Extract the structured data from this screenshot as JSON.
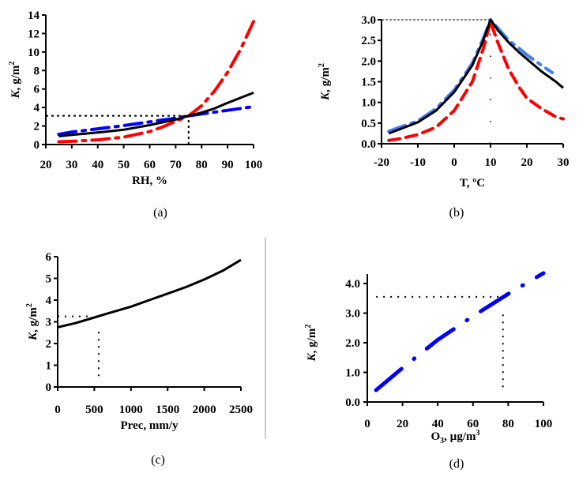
{
  "figure": {
    "divider": true
  },
  "chart_data": [
    {
      "id": "a",
      "type": "line",
      "caption": "(a)",
      "title": "",
      "xlabel": "RH, %",
      "ylabel_italic": "K",
      "ylabel_rest": ", g/m",
      "ylabel_sup": "2",
      "xlim": [
        20,
        100
      ],
      "ylim": [
        0,
        14
      ],
      "xticks": [
        20,
        30,
        40,
        50,
        60,
        70,
        80,
        90,
        100
      ],
      "yticks": [
        0,
        2,
        4,
        6,
        8,
        10,
        12,
        14
      ],
      "ytick_decimals": 0,
      "grid": false,
      "legend": "none",
      "series": [
        {
          "name": "blue dash-dot",
          "color": "#0000ff",
          "style": "dashdot",
          "x": [
            25,
            30,
            40,
            50,
            60,
            70,
            75,
            80,
            90,
            100
          ],
          "y": [
            1.1,
            1.35,
            1.7,
            2.05,
            2.45,
            2.85,
            3.1,
            3.3,
            3.7,
            4.1
          ]
        },
        {
          "name": "red dash-dot",
          "color": "#ff0000",
          "style": "dashdot",
          "x": [
            25,
            30,
            40,
            50,
            60,
            65,
            70,
            75,
            80,
            85,
            90,
            95,
            100
          ],
          "y": [
            0.3,
            0.35,
            0.5,
            0.8,
            1.4,
            1.9,
            2.5,
            3.1,
            4.2,
            5.8,
            7.8,
            10.3,
            13.3
          ]
        },
        {
          "name": "black solid",
          "color": "#000000",
          "style": "solid",
          "x": [
            25,
            30,
            40,
            50,
            60,
            70,
            75,
            80,
            85,
            90,
            100
          ],
          "y": [
            0.9,
            1.05,
            1.3,
            1.6,
            2.1,
            2.7,
            3.1,
            3.45,
            3.9,
            4.5,
            5.6
          ]
        }
      ],
      "reference_lines": [
        {
          "orientation": "horizontal",
          "value": 3.1,
          "from": 20,
          "to": 75
        },
        {
          "orientation": "vertical",
          "value": 75,
          "from": 0,
          "to": 3.1
        }
      ]
    },
    {
      "id": "b",
      "type": "line",
      "caption": "(b)",
      "title": "",
      "xlabel": "T, ºC",
      "ylabel_italic": "K",
      "ylabel_rest": ", g/m",
      "ylabel_sup": "2",
      "xlim": [
        -20,
        30
      ],
      "ylim": [
        0,
        3.0
      ],
      "xticks": [
        -20,
        -10,
        0,
        10,
        20,
        30
      ],
      "yticks": [
        0.0,
        0.5,
        1.0,
        1.5,
        2.0,
        2.5,
        3.0
      ],
      "ytick_decimals": 1,
      "grid": false,
      "legend": "none",
      "series": [
        {
          "name": "light blue dash-dot",
          "color": "#3f7ff5",
          "style": "dashdot",
          "x": [
            -18,
            -15,
            -10,
            -5,
            0,
            5,
            8,
            10,
            12,
            15,
            18,
            20,
            24,
            27
          ],
          "y": [
            0.3,
            0.4,
            0.55,
            0.85,
            1.3,
            1.95,
            2.55,
            3.0,
            2.8,
            2.5,
            2.3,
            2.15,
            1.9,
            1.72
          ]
        },
        {
          "name": "red dashed",
          "color": "#ff0000",
          "style": "dashed",
          "x": [
            -18,
            -15,
            -10,
            -5,
            0,
            5,
            8,
            10,
            12,
            15,
            18,
            20,
            24,
            28,
            30
          ],
          "y": [
            0.08,
            0.12,
            0.22,
            0.4,
            0.8,
            1.5,
            2.3,
            2.95,
            2.45,
            1.8,
            1.35,
            1.1,
            0.85,
            0.65,
            0.6
          ]
        },
        {
          "name": "black solid",
          "color": "#000000",
          "style": "solid",
          "x": [
            -18,
            -15,
            -10,
            -5,
            0,
            5,
            8,
            10,
            12,
            15,
            18,
            20,
            24,
            28,
            30
          ],
          "y": [
            0.25,
            0.35,
            0.52,
            0.8,
            1.25,
            1.9,
            2.5,
            3.0,
            2.75,
            2.45,
            2.2,
            2.05,
            1.75,
            1.5,
            1.35
          ]
        }
      ],
      "reference_lines": [
        {
          "orientation": "horizontal",
          "value": 3.0,
          "from": -20,
          "to": 10
        },
        {
          "orientation": "vertical",
          "value": 10,
          "from": 0,
          "to": 3.0
        }
      ]
    },
    {
      "id": "c",
      "type": "line",
      "caption": "(c)",
      "title": "",
      "xlabel": "Prec, mm/y",
      "ylabel_italic": "K",
      "ylabel_rest": ", g/m",
      "ylabel_sup": "2",
      "xlim": [
        0,
        2500
      ],
      "ylim": [
        0,
        6
      ],
      "xticks": [
        0,
        500,
        1000,
        1500,
        2000,
        2500
      ],
      "yticks": [
        0,
        1,
        2,
        3,
        4,
        5,
        6
      ],
      "ytick_decimals": 0,
      "grid": false,
      "legend": "none",
      "series": [
        {
          "name": "black solid",
          "color": "#000000",
          "style": "solid",
          "x": [
            0,
            250,
            500,
            750,
            1000,
            1250,
            1500,
            1750,
            2000,
            2250,
            2500
          ],
          "y": [
            2.75,
            2.95,
            3.2,
            3.45,
            3.7,
            4.0,
            4.3,
            4.6,
            4.95,
            5.35,
            5.85
          ]
        }
      ],
      "reference_lines": [
        {
          "orientation": "horizontal",
          "value": 3.25,
          "from": 0,
          "to": 430
        },
        {
          "orientation": "vertical",
          "value": 560,
          "from": 0.5,
          "to": 2.55
        }
      ]
    },
    {
      "id": "d",
      "type": "line",
      "caption": "(d)",
      "title": "",
      "xlabel_main": "O",
      "xlabel_sub": "3",
      "xlabel_rest": ", µg/m",
      "xlabel_sup": "3",
      "ylabel_italic": "K",
      "ylabel_rest": ", g/m",
      "ylabel_sup": "2",
      "xlim": [
        0,
        100
      ],
      "ylim": [
        0,
        4.0
      ],
      "xticks": [
        0,
        20,
        40,
        60,
        80,
        100
      ],
      "yticks": [
        0.0,
        1.0,
        2.0,
        3.0,
        4.0
      ],
      "ytick_decimals": 1,
      "grid": false,
      "legend": "none",
      "series": [
        {
          "name": "blue dash-dot",
          "color": "#0000ff",
          "style": "dashdot",
          "x": [
            5,
            20,
            40,
            60,
            80,
            100
          ],
          "y": [
            0.4,
            1.15,
            2.1,
            2.9,
            3.65,
            4.35
          ]
        }
      ],
      "reference_lines": [
        {
          "orientation": "horizontal",
          "value": 3.55,
          "from": 5,
          "to": 80
        },
        {
          "orientation": "vertical",
          "value": 77,
          "from": 0.5,
          "to": 3.0
        }
      ]
    }
  ]
}
